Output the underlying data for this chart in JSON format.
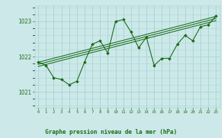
{
  "title": "Graphe pression niveau de la mer (hPa)",
  "bg_color": "#cce8e8",
  "grid_color": "#aad4d4",
  "line_color": "#1a6b1a",
  "x_labels": [
    "0",
    "1",
    "2",
    "3",
    "4",
    "5",
    "6",
    "7",
    "8",
    "9",
    "10",
    "11",
    "12",
    "13",
    "14",
    "15",
    "16",
    "17",
    "18",
    "19",
    "20",
    "21",
    "22",
    "23"
  ],
  "ylim": [
    1020.55,
    1023.45
  ],
  "yticks": [
    1021,
    1022,
    1023
  ],
  "main_x": [
    0,
    1,
    2,
    3,
    4,
    5,
    6,
    7,
    8,
    9,
    10,
    11,
    12,
    13,
    14,
    15,
    16,
    17,
    18,
    19,
    20,
    21,
    22,
    23
  ],
  "main_y": [
    1021.85,
    1021.75,
    1021.4,
    1021.35,
    1021.2,
    1021.3,
    1021.85,
    1022.35,
    1022.45,
    1022.1,
    1023.0,
    1023.05,
    1022.7,
    1022.25,
    1022.55,
    1021.75,
    1021.95,
    1021.95,
    1022.35,
    1022.6,
    1022.45,
    1022.85,
    1022.9,
    1023.15
  ],
  "trend_lines": [
    [
      1021.72,
      1023.02
    ],
    [
      1021.78,
      1023.08
    ],
    [
      1021.84,
      1023.14
    ]
  ]
}
